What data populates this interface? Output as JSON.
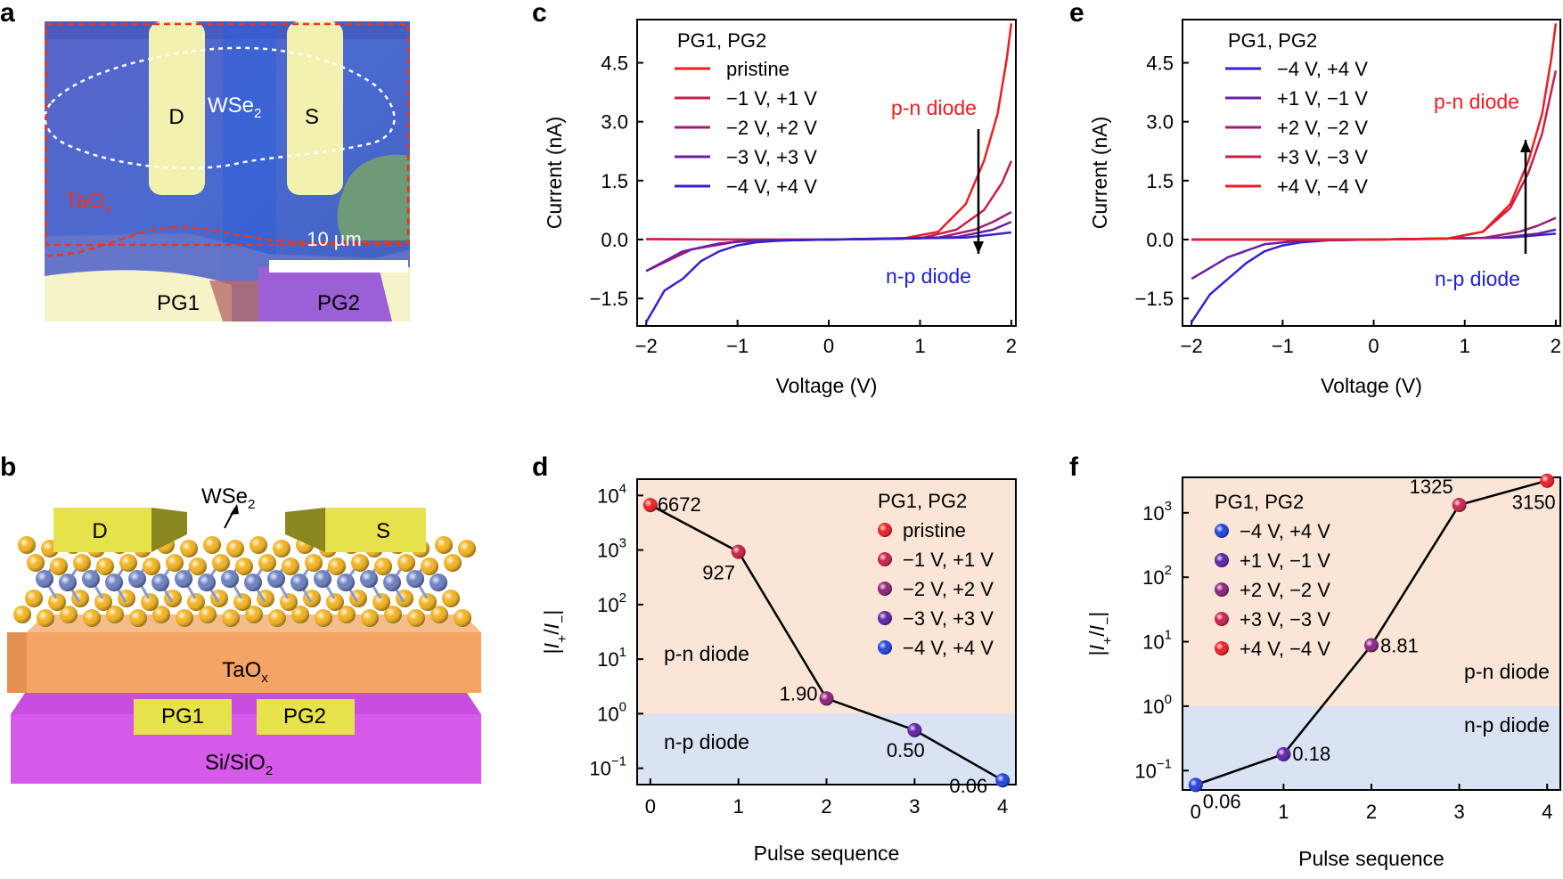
{
  "panel_labels": [
    "a",
    "b",
    "c",
    "d",
    "e",
    "f"
  ],
  "panel_a": {
    "labels": {
      "drain": "D",
      "source": "S",
      "material": "WSe",
      "material_sub": "2",
      "oxide": "TaO",
      "oxide_sub": "x",
      "gate1": "PG1",
      "gate2": "PG2",
      "scale": "10 µm"
    },
    "colors": {
      "substrate": "#4a5fc8",
      "electrode": "#f3f1b0",
      "outline": "#e8371e"
    }
  },
  "panel_b": {
    "labels": {
      "drain": "D",
      "source": "S",
      "material": "WSe",
      "material_sub": "2",
      "oxide": "TaO",
      "oxide_sub": "x",
      "gate1": "PG1",
      "gate2": "PG2",
      "substrate": "Si/SiO",
      "substrate_sub": "2"
    },
    "colors": {
      "electrode": "#e6e24a",
      "oxide": "#f4a566",
      "substrate": "#d44ee8",
      "selenium": "#f2b21c",
      "tungsten": "#6a7fc2"
    }
  },
  "chart_data": [
    {
      "panel": "c",
      "type": "line",
      "xlabel": "Voltage (V)",
      "ylabel": "Current (nA)",
      "xlim": [
        -2.1,
        2.05
      ],
      "ylim": [
        -2.2,
        5.6
      ],
      "xticks": [
        "−2",
        "−1",
        "0",
        "1",
        "2"
      ],
      "yticks": [
        "−1.5",
        "0.0",
        "1.5",
        "3.0",
        "4.5"
      ],
      "legend_title": "PG1, PG2",
      "annotations": {
        "top": "p-n diode",
        "bottom": "n-p diode"
      },
      "series": [
        {
          "name": "pristine",
          "color": "#ee1c24",
          "x": [
            -2,
            -1,
            0,
            0.8,
            1.2,
            1.5,
            1.7,
            1.85,
            1.95,
            2.0
          ],
          "y": [
            0.01,
            0.0,
            0.0,
            0.02,
            0.2,
            0.9,
            2.0,
            3.2,
            4.6,
            5.5
          ]
        },
        {
          "name": "−1 V, +1 V",
          "color": "#c81f48",
          "x": [
            -2,
            -1,
            0,
            1.0,
            1.4,
            1.7,
            1.9,
            2.0
          ],
          "y": [
            0.01,
            0.0,
            0.0,
            0.03,
            0.25,
            0.75,
            1.45,
            2.0
          ]
        },
        {
          "name": "−2 V, +2 V",
          "color": "#9c1f73",
          "x": [
            -2,
            -1.5,
            -1,
            0,
            1.2,
            1.6,
            1.8,
            2.0
          ],
          "y": [
            -0.8,
            -0.25,
            -0.05,
            0.0,
            0.05,
            0.25,
            0.45,
            0.7
          ]
        },
        {
          "name": "−3 V, +3 V",
          "color": "#6c1fa3",
          "x": [
            -2,
            -1.6,
            -1.2,
            -0.8,
            0,
            1.4,
            1.8,
            2.0
          ],
          "y": [
            -0.8,
            -0.3,
            -0.1,
            -0.02,
            0.0,
            0.06,
            0.25,
            0.45
          ]
        },
        {
          "name": "−4 V, +4 V",
          "color": "#3a1fcf",
          "x": [
            -2,
            -1.8,
            -1.6,
            -1.4,
            -1.2,
            -1.0,
            -0.8,
            -0.5,
            0,
            1.5,
            2.0
          ],
          "y": [
            -2.1,
            -1.3,
            -1.0,
            -0.55,
            -0.3,
            -0.15,
            -0.07,
            -0.02,
            0.0,
            0.05,
            0.18
          ]
        }
      ]
    },
    {
      "panel": "d",
      "type": "scatter",
      "xlabel": "Pulse sequence",
      "ylabel_parts": [
        "|",
        "I",
        "+",
        "/",
        "I",
        "−",
        "|"
      ],
      "yscale": "log",
      "xlim": [
        -0.15,
        4.15
      ],
      "ylim_log10": [
        -1.3,
        4.3
      ],
      "xticks": [
        "0",
        "1",
        "2",
        "3",
        "4"
      ],
      "ytick_exponents": [
        "−1",
        "0",
        "1",
        "2",
        "3",
        "4"
      ],
      "legend_title": "PG1, PG2",
      "region_labels": {
        "upper": "p-n diode",
        "lower": "n-p diode"
      },
      "region_colors": {
        "upper": "#fbe5d6",
        "lower": "#dae3f3"
      },
      "x": [
        0,
        1,
        2,
        3,
        4
      ],
      "y": [
        6672,
        927,
        1.9,
        0.5,
        0.06
      ],
      "point_labels": [
        "6672",
        "927",
        "1.90",
        "0.50",
        "0.06"
      ],
      "series": [
        {
          "name": "pristine",
          "color": "#ee1c24"
        },
        {
          "name": "−1 V, +1 V",
          "color": "#c81f48"
        },
        {
          "name": "−2 V, +2 V",
          "color": "#8b1f7a"
        },
        {
          "name": "−3 V, +3 V",
          "color": "#5a1fa8"
        },
        {
          "name": "−4 V, +4 V",
          "color": "#1f3fe0"
        }
      ]
    },
    {
      "panel": "e",
      "type": "line",
      "xlabel": "Voltage (V)",
      "ylabel": "Current (nA)",
      "xlim": [
        -2.1,
        2.05
      ],
      "ylim": [
        -2.2,
        5.6
      ],
      "xticks": [
        "−2",
        "−1",
        "0",
        "1",
        "2"
      ],
      "yticks": [
        "−1.5",
        "0.0",
        "1.5",
        "3.0",
        "4.5"
      ],
      "legend_title": "PG1, PG2",
      "annotations": {
        "top": "p-n diode",
        "bottom": "n-p diode"
      },
      "series": [
        {
          "name": "−4 V, +4 V",
          "color": "#3a1fcf",
          "x": [
            -2,
            -1.8,
            -1.6,
            -1.4,
            -1.2,
            -1.0,
            -0.8,
            -0.5,
            0,
            1.5,
            2.0
          ],
          "y": [
            -2.1,
            -1.4,
            -1.0,
            -0.6,
            -0.3,
            -0.15,
            -0.07,
            -0.02,
            0.0,
            0.05,
            0.15
          ]
        },
        {
          "name": "+1 V, −1 V",
          "color": "#6c1fa3",
          "x": [
            -2,
            -1.6,
            -1.2,
            -0.8,
            0,
            1.4,
            1.8,
            2.0
          ],
          "y": [
            -1.0,
            -0.45,
            -0.12,
            -0.03,
            0.0,
            0.05,
            0.15,
            0.25
          ]
        },
        {
          "name": "+2 V, −2 V",
          "color": "#9c1f73",
          "x": [
            -2,
            -1,
            0,
            1.2,
            1.6,
            1.8,
            2.0
          ],
          "y": [
            0.0,
            0.0,
            0.0,
            0.04,
            0.2,
            0.35,
            0.55
          ]
        },
        {
          "name": "+3 V, −3 V",
          "color": "#c81f48",
          "x": [
            -2,
            -1,
            0,
            0.8,
            1.2,
            1.5,
            1.7,
            1.85,
            2.0
          ],
          "y": [
            0.0,
            0.0,
            0.0,
            0.02,
            0.2,
            0.8,
            1.7,
            2.7,
            4.3
          ]
        },
        {
          "name": "+4 V, −4 V",
          "color": "#ee1c24",
          "x": [
            -2,
            -1,
            0,
            0.8,
            1.2,
            1.5,
            1.7,
            1.85,
            1.95,
            2.0
          ],
          "y": [
            0.0,
            0.0,
            0.0,
            0.02,
            0.2,
            0.9,
            2.0,
            3.2,
            4.6,
            5.5
          ]
        }
      ]
    },
    {
      "panel": "f",
      "type": "scatter",
      "xlabel": "Pulse sequence",
      "ylabel_parts": [
        "|",
        "I",
        "+",
        "/",
        "I",
        "−",
        "|"
      ],
      "yscale": "log",
      "xlim": [
        -0.15,
        4.15
      ],
      "ylim_log10": [
        -1.3,
        3.55
      ],
      "xticks": [
        "0",
        "1",
        "2",
        "3",
        "4"
      ],
      "ytick_exponents": [
        "−1",
        "0",
        "1",
        "2",
        "3"
      ],
      "legend_title": "PG1, PG2",
      "region_labels": {
        "upper": "p-n diode",
        "lower": "n-p diode"
      },
      "region_colors": {
        "upper": "#fbe5d6",
        "lower": "#dae3f3"
      },
      "x": [
        0,
        1,
        2,
        3,
        4
      ],
      "y": [
        0.06,
        0.18,
        8.81,
        1325,
        3150
      ],
      "point_labels": [
        "0.06",
        "0.18",
        "8.81",
        "1325",
        "3150"
      ],
      "series": [
        {
          "name": "−4 V, +4 V",
          "color": "#1f3fe0"
        },
        {
          "name": "+1 V, −1 V",
          "color": "#5a1fa8"
        },
        {
          "name": "+2 V, −2 V",
          "color": "#8b1f7a"
        },
        {
          "name": "+3 V, −3 V",
          "color": "#c81f48"
        },
        {
          "name": "+4 V, −4 V",
          "color": "#ee1c24"
        }
      ]
    }
  ]
}
